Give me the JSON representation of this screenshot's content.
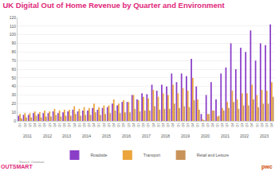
{
  "chart_data": {
    "type": "bar",
    "title": "UK Digital Out of Home Revenue by Quarter and Environment",
    "categories": [
      "Q1",
      "Q2",
      "Q3",
      "Q4",
      "Q1",
      "Q2",
      "Q3",
      "Q4",
      "Q1",
      "Q2",
      "Q3",
      "Q4",
      "Q1",
      "Q2",
      "Q3",
      "Q4",
      "Q1",
      "Q2",
      "Q3",
      "Q4",
      "Q1",
      "Q2",
      "Q3",
      "Q4",
      "Q1",
      "Q2",
      "Q3",
      "Q4",
      "Q1",
      "Q2",
      "Q3",
      "Q4",
      "Q1",
      "Q2",
      "Q3",
      "Q4",
      "Q1",
      "Q2",
      "Q3",
      "Q4",
      "Q1",
      "Q2",
      "Q3",
      "Q4",
      "Q1",
      "Q2",
      "Q3",
      "Q4",
      "Q1",
      "Q2",
      "Q3",
      "Q4"
    ],
    "years": [
      "2011",
      "2012",
      "2013",
      "2014",
      "2015",
      "2016",
      "2017",
      "2018",
      "2019",
      "2020",
      "2021",
      "2022",
      "2023"
    ],
    "series": [
      {
        "name": "Roadside",
        "color": "#8a3ec8",
        "values": [
          6,
          7,
          7,
          9,
          8,
          9,
          9,
          11,
          9,
          10,
          11,
          13,
          11,
          12,
          12,
          15,
          13,
          15,
          16,
          20,
          18,
          22,
          22,
          30,
          25,
          32,
          31,
          42,
          35,
          42,
          40,
          55,
          45,
          55,
          52,
          72,
          40,
          8,
          30,
          45,
          25,
          55,
          62,
          90,
          60,
          85,
          80,
          105,
          70,
          90,
          88,
          112
        ]
      },
      {
        "name": "Transport",
        "color": "#eba53c",
        "values": [
          8,
          9,
          9,
          11,
          10,
          12,
          11,
          14,
          12,
          13,
          13,
          17,
          14,
          16,
          15,
          20,
          16,
          18,
          18,
          25,
          20,
          24,
          22,
          30,
          24,
          28,
          26,
          36,
          28,
          32,
          30,
          42,
          32,
          38,
          35,
          50,
          25,
          2,
          8,
          12,
          5,
          15,
          22,
          35,
          25,
          32,
          32,
          42,
          30,
          36,
          35,
          45
        ]
      },
      {
        "name": "Retail and Leisure",
        "color": "#c9945a",
        "values": [
          3,
          4,
          4,
          6,
          4,
          5,
          5,
          7,
          5,
          6,
          6,
          8,
          6,
          7,
          7,
          10,
          7,
          8,
          9,
          12,
          9,
          10,
          10,
          14,
          11,
          12,
          12,
          17,
          13,
          14,
          14,
          20,
          15,
          17,
          16,
          24,
          13,
          1,
          8,
          12,
          6,
          12,
          15,
          22,
          14,
          18,
          18,
          25,
          16,
          20,
          20,
          28
        ]
      }
    ],
    "ylim": [
      0,
      120
    ],
    "yticks": [
      0,
      10,
      20,
      30,
      40,
      50,
      60,
      70,
      80,
      90,
      100,
      110,
      120
    ],
    "grid": true,
    "legend": "bottom",
    "source": "Source: Outsmart",
    "logos": [
      "OUTSMART",
      "pwc"
    ]
  }
}
